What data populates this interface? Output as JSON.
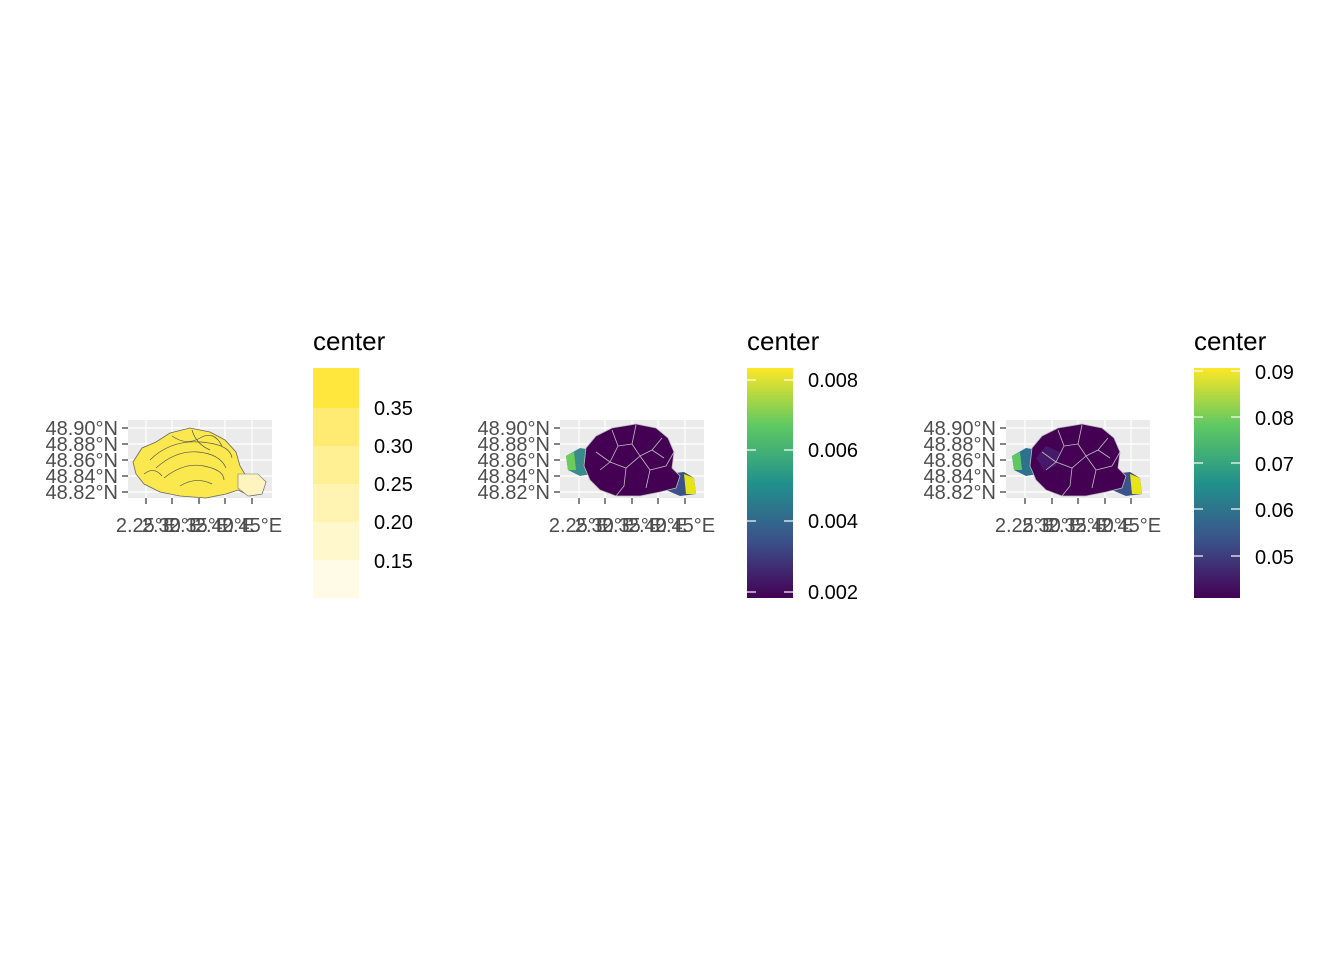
{
  "chart_data": [
    {
      "type": "map",
      "panel": "left",
      "y_ticks": [
        "48.90°N",
        "48.88°N",
        "48.86°N",
        "48.84°N",
        "48.82°N"
      ],
      "x_ticks": [
        "2.25°E",
        "2.30°E",
        "2.35°E",
        "2.40°E",
        "2.45°E"
      ],
      "fill_style": "contours",
      "legend": {
        "title": "center",
        "kind": "binned",
        "labels": [
          "0.35",
          "0.30",
          "0.25",
          "0.20",
          "0.15"
        ],
        "bin_colors": [
          "#fff9e0",
          "#fff7c4",
          "#fff3a8",
          "#ffef8c",
          "#ffeb6e",
          "#ffe745"
        ]
      }
    },
    {
      "type": "map",
      "panel": "middle",
      "y_ticks": [
        "48.90°N",
        "48.88°N",
        "48.86°N",
        "48.84°N",
        "48.82°N"
      ],
      "x_ticks": [
        "2.25°E",
        "2.30°E",
        "2.35°E",
        "2.40°E",
        "2.45°E"
      ],
      "fill_style": "arrondissements",
      "legend": {
        "title": "center",
        "kind": "continuous",
        "labels": [
          "0.008",
          "0.006",
          "0.004",
          "0.002"
        ],
        "gradient": [
          "#fde725",
          "#5ec962",
          "#21918c",
          "#3b528b",
          "#440154"
        ]
      }
    },
    {
      "type": "map",
      "panel": "right",
      "y_ticks": [
        "48.90°N",
        "48.88°N",
        "48.86°N",
        "48.84°N",
        "48.82°N"
      ],
      "x_ticks": [
        "2.25°E",
        "2.30°E",
        "2.35°E",
        "2.40°E",
        "2.45°E"
      ],
      "fill_style": "arrondissements",
      "legend": {
        "title": "center",
        "kind": "continuous",
        "labels": [
          "0.09",
          "0.08",
          "0.07",
          "0.06",
          "0.05"
        ],
        "gradient": [
          "#fde725",
          "#5ec962",
          "#21918c",
          "#3b528b",
          "#440154"
        ]
      }
    }
  ],
  "colors": {
    "panel_bg": "#ebebeb",
    "grid": "#ffffff",
    "region_dark": "#440154",
    "region_border": "#c0c0c0",
    "contour_fill": "#ffe745",
    "contour_line": "#444444"
  }
}
